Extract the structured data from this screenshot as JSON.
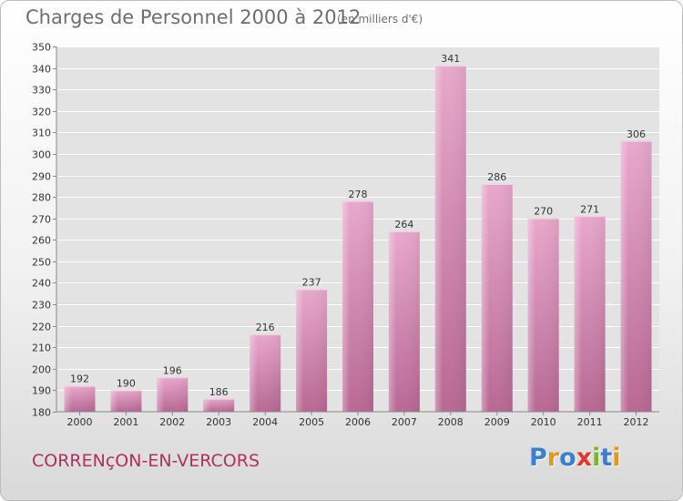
{
  "title": "Charges de Personnel 2000 à 2012",
  "subtitle": "(en milliers d'€)",
  "town": "CORRENçON-EN-VERCORS",
  "logo": {
    "text": "Proxiti",
    "letter_colors": [
      "#3a7fd0",
      "#e8951c",
      "#3a7fd0",
      "#e0382b",
      "#7ab72f",
      "#3a7fd0",
      "#e8951c"
    ]
  },
  "chart_data": {
    "type": "bar",
    "categories": [
      "2000",
      "2001",
      "2002",
      "2003",
      "2004",
      "2005",
      "2006",
      "2007",
      "2008",
      "2009",
      "2010",
      "2011",
      "2012"
    ],
    "values": [
      192,
      190,
      196,
      186,
      216,
      237,
      278,
      264,
      341,
      286,
      270,
      271,
      306
    ],
    "ylim": [
      180,
      350
    ],
    "yticks": [
      180,
      190,
      200,
      210,
      220,
      230,
      240,
      250,
      260,
      270,
      280,
      290,
      300,
      310,
      320,
      330,
      340,
      350
    ],
    "grid": true,
    "bar_color": "#d9769f"
  }
}
